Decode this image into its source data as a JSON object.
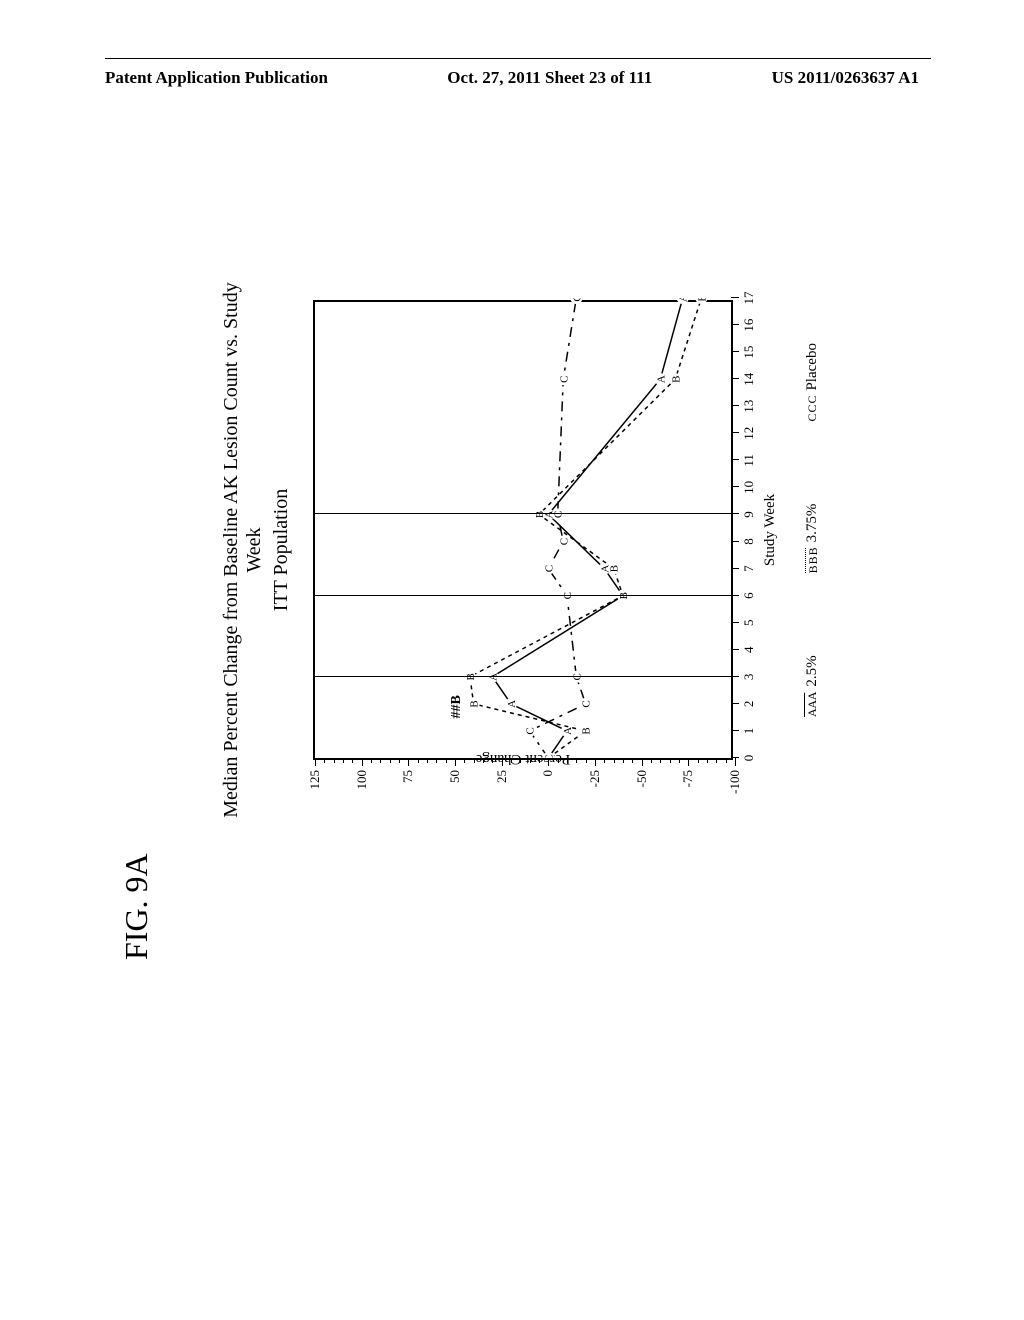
{
  "header": {
    "left": "Patent Application Publication",
    "center": "Oct. 27, 2011  Sheet 23 of 111",
    "right": "US 2011/0263637 A1"
  },
  "figure_label": "FIG. 9A",
  "chart": {
    "type": "line",
    "title": "Median Percent Change from Baseline AK Lesion Count vs. Study Week",
    "subtitle": "ITT Population",
    "y_axis": {
      "label": "Percent Change",
      "min": -100,
      "max": 125,
      "major_ticks": [
        -100,
        -75,
        -50,
        -25,
        0,
        25,
        50,
        75,
        100,
        125
      ]
    },
    "x_axis": {
      "label": "Study Week",
      "min": 0,
      "max": 17,
      "ticks": [
        0,
        1,
        2,
        3,
        4,
        5,
        6,
        7,
        8,
        9,
        10,
        11,
        12,
        13,
        14,
        15,
        16,
        17
      ]
    },
    "reference_lines_x": [
      3,
      6,
      9
    ],
    "series": [
      {
        "name": "2.5%",
        "marker": "A",
        "line_style": "solid",
        "data": [
          {
            "x": 0,
            "y": 0
          },
          {
            "x": 1,
            "y": -10
          },
          {
            "x": 2,
            "y": 20
          },
          {
            "x": 3,
            "y": 30
          },
          {
            "x": 6,
            "y": -40
          },
          {
            "x": 7,
            "y": -30
          },
          {
            "x": 9,
            "y": 0
          },
          {
            "x": 14,
            "y": -60
          },
          {
            "x": 17,
            "y": -72
          }
        ]
      },
      {
        "name": "3.75%",
        "marker": "B",
        "line_style": "short-dash",
        "data": [
          {
            "x": 0,
            "y": 0
          },
          {
            "x": 1,
            "y": -20
          },
          {
            "x": 2,
            "y": 40
          },
          {
            "x": 3,
            "y": 42
          },
          {
            "x": 6,
            "y": -40
          },
          {
            "x": 7,
            "y": -35
          },
          {
            "x": 9,
            "y": 5
          },
          {
            "x": 14,
            "y": -68
          },
          {
            "x": 17,
            "y": -82
          }
        ],
        "label_at": {
          "x": 2.2,
          "y": 48,
          "text": "##B"
        }
      },
      {
        "name": "Placebo",
        "marker": "C",
        "line_style": "long-dash",
        "data": [
          {
            "x": 0,
            "y": 0
          },
          {
            "x": 1,
            "y": 10
          },
          {
            "x": 2,
            "y": -20
          },
          {
            "x": 3,
            "y": -15
          },
          {
            "x": 6,
            "y": -10
          },
          {
            "x": 7,
            "y": 0
          },
          {
            "x": 8,
            "y": -8
          },
          {
            "x": 9,
            "y": -5
          },
          {
            "x": 14,
            "y": -8
          },
          {
            "x": 17,
            "y": -15
          }
        ]
      }
    ],
    "legend": [
      {
        "marker_text": "A A A",
        "style": "overline",
        "label": "2.5%"
      },
      {
        "marker_text": "B B B",
        "style": "dotted-over",
        "label": "3.75%"
      },
      {
        "marker_text": "C C C",
        "style": "dots",
        "label": "Placebo"
      }
    ],
    "colors": {
      "line": "#000000",
      "background": "#ffffff",
      "axis": "#000000"
    }
  }
}
